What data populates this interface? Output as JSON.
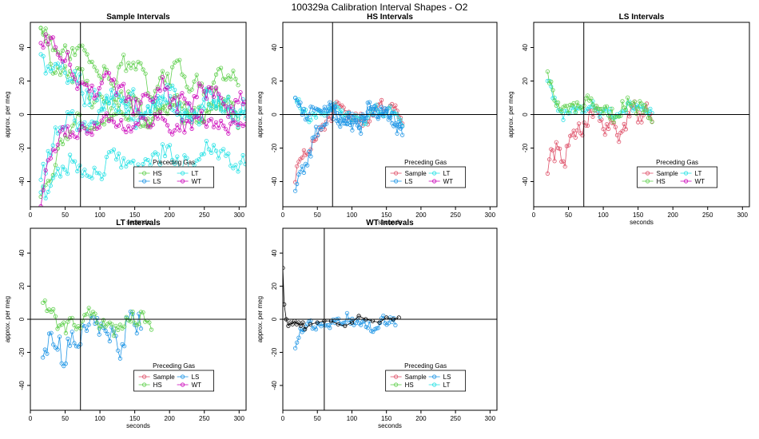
{
  "figure_title": "100329a   Calibration Interval Shapes - O2",
  "colors": {
    "Sample": "#DF536B",
    "HS": "#61D04F",
    "LS": "#2297E6",
    "LT": "#28E2E5",
    "WT": "#CD0BBC",
    "self": "#000000"
  },
  "chart_data": [
    {
      "type": "scatter",
      "title": "Sample Intervals",
      "xlabel": "seconds",
      "ylabel": "approx. per meg",
      "xlim": [
        0,
        310
      ],
      "ylim": [
        -55,
        55
      ],
      "xticks": [
        0,
        50,
        100,
        150,
        200,
        250,
        300
      ],
      "yticks": [
        -40,
        -20,
        0,
        20,
        40
      ],
      "vline": 72,
      "hline": 0,
      "legend": {
        "title": "Preceding Gas",
        "position": "bottom-center",
        "entries": [
          "HS",
          "LT",
          "LS",
          "WT"
        ]
      },
      "series": [
        {
          "name": "HS",
          "traces": [
            {
              "start": 15,
              "end": 300,
              "step": 3.5,
              "y0": 52,
              "y1": 20,
              "tau": 60,
              "amp": 6,
              "spread": 5
            },
            {
              "start": 15,
              "end": 300,
              "step": 3.5,
              "y0": 52,
              "y1": 5,
              "tau": 40,
              "amp": 6,
              "spread": 5
            },
            {
              "start": 15,
              "end": 300,
              "step": 3.5,
              "y0": -48,
              "y1": 0,
              "tau": 30,
              "amp": 4,
              "spread": 4
            }
          ]
        },
        {
          "name": "LT",
          "traces": [
            {
              "start": 15,
              "end": 310,
              "step": 3.5,
              "y0": 40,
              "y1": 5,
              "tau": 50,
              "amp": 6,
              "spread": 6
            },
            {
              "start": 15,
              "end": 310,
              "step": 3.5,
              "y0": -40,
              "y1": -25,
              "tau": 80,
              "amp": 5,
              "spread": 5
            },
            {
              "start": 15,
              "end": 310,
              "step": 3.5,
              "y0": -30,
              "y1": 5,
              "tau": 40,
              "amp": 5,
              "spread": 5
            }
          ]
        },
        {
          "name": "LS",
          "traces": []
        },
        {
          "name": "WT",
          "traces": [
            {
              "start": 15,
              "end": 310,
              "step": 3.5,
              "y0": 52,
              "y1": 10,
              "tau": 45,
              "amp": 5,
              "spread": 5
            },
            {
              "start": 15,
              "end": 310,
              "step": 3.5,
              "y0": -50,
              "y1": -5,
              "tau": 20,
              "amp": 3,
              "spread": 4
            }
          ]
        }
      ]
    },
    {
      "type": "scatter",
      "title": "HS Intervals",
      "xlabel": "seconds",
      "ylabel": "approx. per meg",
      "xlim": [
        0,
        310
      ],
      "ylim": [
        -55,
        55
      ],
      "xticks": [
        0,
        50,
        100,
        150,
        200,
        250,
        300
      ],
      "yticks": [
        -40,
        -20,
        0,
        20,
        40
      ],
      "vline": 72,
      "hline": 0,
      "legend": {
        "title": "Preceding Gas",
        "position": "bottom-center",
        "entries": [
          "Sample",
          "LT",
          "LS",
          "WT"
        ]
      },
      "series": [
        {
          "name": "Sample",
          "traces": [
            {
              "start": 18,
              "end": 175,
              "step": 2.5,
              "y0": -40,
              "y1": 2,
              "tau": 25,
              "amp": 4,
              "spread": 4
            }
          ]
        },
        {
          "name": "LT",
          "traces": [
            {
              "start": 18,
              "end": 175,
              "step": 2.5,
              "y0": 10,
              "y1": 0,
              "tau": 15,
              "amp": 3,
              "spread": 3
            }
          ]
        },
        {
          "name": "LS",
          "traces": [
            {
              "start": 18,
              "end": 175,
              "step": 2.5,
              "y0": -45,
              "y1": -2,
              "tau": 20,
              "amp": 5,
              "spread": 5
            },
            {
              "start": 18,
              "end": 175,
              "step": 2.5,
              "y0": 12,
              "y1": -1,
              "tau": 20,
              "amp": 4,
              "spread": 4
            }
          ]
        },
        {
          "name": "WT",
          "traces": []
        }
      ]
    },
    {
      "type": "scatter",
      "title": "LS Intervals",
      "xlabel": "seconds",
      "ylabel": "approx. per meg",
      "xlim": [
        0,
        310
      ],
      "ylim": [
        -55,
        55
      ],
      "xticks": [
        0,
        50,
        100,
        150,
        200,
        250,
        300
      ],
      "yticks": [
        -40,
        -20,
        0,
        20,
        40
      ],
      "vline": 72,
      "hline": 0,
      "legend": {
        "title": "Preceding Gas",
        "position": "bottom-center",
        "entries": [
          "Sample",
          "LT",
          "HS",
          "WT"
        ]
      },
      "series": [
        {
          "name": "Sample",
          "traces": [
            {
              "start": 20,
              "end": 170,
              "step": 2.5,
              "y0": -35,
              "y1": -2,
              "tau": 30,
              "amp": 6,
              "spread": 6
            }
          ]
        },
        {
          "name": "LT",
          "traces": [
            {
              "start": 20,
              "end": 170,
              "step": 2.5,
              "y0": 20,
              "y1": 2,
              "tau": 10,
              "amp": 3,
              "spread": 3
            }
          ]
        },
        {
          "name": "HS",
          "traces": [
            {
              "start": 20,
              "end": 170,
              "step": 2.5,
              "y0": 26,
              "y1": 3,
              "tau": 10,
              "amp": 3,
              "spread": 4
            }
          ]
        },
        {
          "name": "WT",
          "traces": []
        }
      ]
    },
    {
      "type": "scatter",
      "title": "LT Intervals",
      "xlabel": "seconds",
      "ylabel": "approx. per meg",
      "xlim": [
        0,
        310
      ],
      "ylim": [
        -55,
        55
      ],
      "xticks": [
        0,
        50,
        100,
        150,
        200,
        250,
        300
      ],
      "yticks": [
        -40,
        -20,
        0,
        20,
        40
      ],
      "vline": 72,
      "hline": 0,
      "legend": {
        "title": "Preceding Gas",
        "position": "bottom-center",
        "entries": [
          "Sample",
          "LS",
          "HS",
          "WT"
        ]
      },
      "series": [
        {
          "name": "Sample",
          "traces": []
        },
        {
          "name": "LS",
          "traces": [
            {
              "start": 18,
              "end": 160,
              "step": 3,
              "y0": -25,
              "y1": -7,
              "tau": 20,
              "amp": 8,
              "spread": 7
            }
          ]
        },
        {
          "name": "HS",
          "traces": [
            {
              "start": 18,
              "end": 175,
              "step": 3,
              "y0": 10,
              "y1": -2,
              "tau": 15,
              "amp": 4,
              "spread": 4
            }
          ]
        },
        {
          "name": "WT",
          "traces": []
        }
      ]
    },
    {
      "type": "scatter",
      "title": "WT Intervals",
      "xlabel": "seconds",
      "ylabel": "approx. per meg",
      "xlim": [
        0,
        310
      ],
      "ylim": [
        -55,
        55
      ],
      "xticks": [
        0,
        50,
        100,
        150,
        200,
        250,
        300
      ],
      "yticks": [
        -40,
        -20,
        0,
        20,
        40
      ],
      "vline": 60,
      "hline": 0,
      "legend": {
        "title": "Preceding Gas",
        "position": "bottom-center",
        "entries": [
          "Sample",
          "LS",
          "HS",
          "LT"
        ]
      },
      "series": [
        {
          "name": "LS",
          "traces": [
            {
              "start": 18,
              "end": 165,
              "step": 2.5,
              "y0": -18,
              "y1": -2,
              "tau": 10,
              "amp": 2,
              "spread": 3
            }
          ]
        },
        {
          "name": "self",
          "points": [
            [
              0,
              31
            ],
            [
              2,
              9
            ],
            [
              5,
              0
            ],
            [
              8,
              -4
            ],
            [
              11,
              -2
            ],
            [
              14,
              -3
            ],
            [
              17,
              -1
            ],
            [
              20,
              -3
            ],
            [
              23,
              -2
            ],
            [
              26,
              -4
            ],
            [
              29,
              -2
            ],
            [
              32,
              -6
            ],
            [
              40,
              -3
            ],
            [
              50,
              -2
            ],
            [
              60,
              -1
            ],
            [
              70,
              -1
            ],
            [
              80,
              -3
            ],
            [
              90,
              -4
            ],
            [
              100,
              -2
            ],
            [
              110,
              2
            ],
            [
              120,
              0
            ],
            [
              130,
              -1
            ],
            [
              140,
              -2
            ],
            [
              150,
              1
            ],
            [
              160,
              0
            ],
            [
              168,
              1
            ]
          ]
        }
      ]
    }
  ]
}
